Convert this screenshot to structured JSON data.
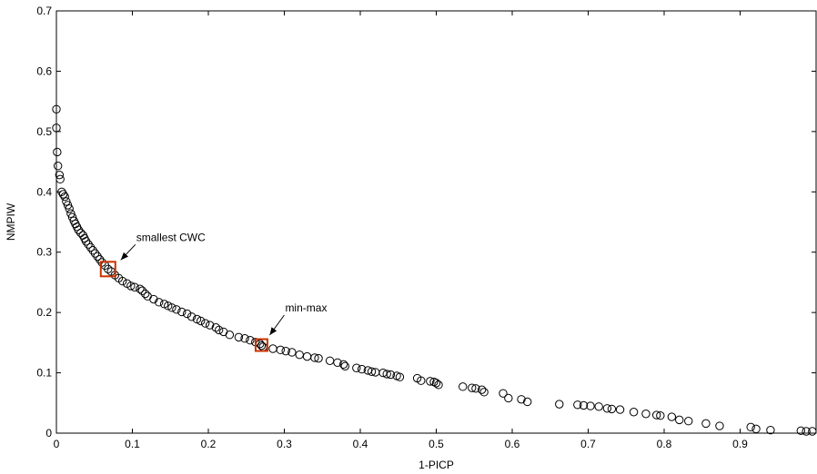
{
  "chart_data": {
    "type": "scatter",
    "title": "",
    "xlabel": "1-PICP",
    "ylabel": "NMPIW",
    "xlim": [
      0,
      1
    ],
    "ylim": [
      0,
      0.7
    ],
    "x_ticks": [
      0,
      0.1,
      0.2,
      0.3,
      0.4,
      0.5,
      0.6,
      0.7,
      0.8,
      0.9
    ],
    "x_tick_labels": [
      "0",
      "0.1",
      "0.2",
      "0.3",
      "0.4",
      "0.5",
      "0.6",
      "0.7",
      "0.8",
      "0.9"
    ],
    "y_ticks": [
      0,
      0.1,
      0.2,
      0.3,
      0.4,
      0.5,
      0.6,
      0.7
    ],
    "y_tick_labels": [
      "0",
      "0.1",
      "0.2",
      "0.3",
      "0.4",
      "0.5",
      "0.6",
      "0.7"
    ],
    "grid": false,
    "marker": "circle-open",
    "series": [
      {
        "points": [
          [
            0.0,
            0.537
          ],
          [
            0.0,
            0.506
          ],
          [
            0.001,
            0.466
          ],
          [
            0.002,
            0.443
          ],
          [
            0.004,
            0.428
          ],
          [
            0.005,
            0.421
          ],
          [
            0.007,
            0.4
          ],
          [
            0.009,
            0.396
          ],
          [
            0.011,
            0.392
          ],
          [
            0.013,
            0.384
          ],
          [
            0.015,
            0.378
          ],
          [
            0.017,
            0.372
          ],
          [
            0.019,
            0.364
          ],
          [
            0.021,
            0.358
          ],
          [
            0.023,
            0.352
          ],
          [
            0.025,
            0.347
          ],
          [
            0.027,
            0.342
          ],
          [
            0.029,
            0.337
          ],
          [
            0.032,
            0.332
          ],
          [
            0.035,
            0.328
          ],
          [
            0.037,
            0.323
          ],
          [
            0.039,
            0.318
          ],
          [
            0.042,
            0.313
          ],
          [
            0.045,
            0.308
          ],
          [
            0.048,
            0.303
          ],
          [
            0.051,
            0.298
          ],
          [
            0.054,
            0.293
          ],
          [
            0.057,
            0.288
          ],
          [
            0.06,
            0.283
          ],
          [
            0.064,
            0.278
          ],
          [
            0.068,
            0.272
          ],
          [
            0.072,
            0.268
          ],
          [
            0.077,
            0.262
          ],
          [
            0.082,
            0.257
          ],
          [
            0.087,
            0.252
          ],
          [
            0.093,
            0.248
          ],
          [
            0.098,
            0.244
          ],
          [
            0.103,
            0.242
          ],
          [
            0.11,
            0.239
          ],
          [
            0.113,
            0.236
          ],
          [
            0.117,
            0.231
          ],
          [
            0.12,
            0.227
          ],
          [
            0.128,
            0.222
          ],
          [
            0.135,
            0.217
          ],
          [
            0.142,
            0.214
          ],
          [
            0.147,
            0.211
          ],
          [
            0.152,
            0.208
          ],
          [
            0.158,
            0.205
          ],
          [
            0.165,
            0.201
          ],
          [
            0.172,
            0.198
          ],
          [
            0.178,
            0.193
          ],
          [
            0.185,
            0.189
          ],
          [
            0.19,
            0.186
          ],
          [
            0.196,
            0.182
          ],
          [
            0.202,
            0.179
          ],
          [
            0.21,
            0.175
          ],
          [
            0.214,
            0.171
          ],
          [
            0.22,
            0.168
          ],
          [
            0.228,
            0.163
          ],
          [
            0.24,
            0.159
          ],
          [
            0.248,
            0.157
          ],
          [
            0.255,
            0.154
          ],
          [
            0.262,
            0.151
          ],
          [
            0.268,
            0.148
          ],
          [
            0.27,
            0.145
          ],
          [
            0.272,
            0.143
          ],
          [
            0.285,
            0.14
          ],
          [
            0.295,
            0.138
          ],
          [
            0.302,
            0.136
          ],
          [
            0.31,
            0.134
          ],
          [
            0.32,
            0.13
          ],
          [
            0.33,
            0.127
          ],
          [
            0.34,
            0.125
          ],
          [
            0.345,
            0.124
          ],
          [
            0.36,
            0.12
          ],
          [
            0.37,
            0.117
          ],
          [
            0.378,
            0.114
          ],
          [
            0.38,
            0.111
          ],
          [
            0.395,
            0.108
          ],
          [
            0.402,
            0.106
          ],
          [
            0.41,
            0.104
          ],
          [
            0.415,
            0.102
          ],
          [
            0.42,
            0.101
          ],
          [
            0.43,
            0.1
          ],
          [
            0.435,
            0.098
          ],
          [
            0.44,
            0.097
          ],
          [
            0.448,
            0.095
          ],
          [
            0.452,
            0.093
          ],
          [
            0.475,
            0.091
          ],
          [
            0.48,
            0.087
          ],
          [
            0.492,
            0.086
          ],
          [
            0.497,
            0.085
          ],
          [
            0.5,
            0.083
          ],
          [
            0.503,
            0.08
          ],
          [
            0.535,
            0.077
          ],
          [
            0.547,
            0.075
          ],
          [
            0.552,
            0.074
          ],
          [
            0.56,
            0.072
          ],
          [
            0.563,
            0.068
          ],
          [
            0.588,
            0.066
          ],
          [
            0.595,
            0.058
          ],
          [
            0.612,
            0.056
          ],
          [
            0.62,
            0.052
          ],
          [
            0.662,
            0.048
          ],
          [
            0.686,
            0.047
          ],
          [
            0.694,
            0.046
          ],
          [
            0.703,
            0.045
          ],
          [
            0.714,
            0.044
          ],
          [
            0.725,
            0.041
          ],
          [
            0.731,
            0.04
          ],
          [
            0.742,
            0.039
          ],
          [
            0.76,
            0.035
          ],
          [
            0.776,
            0.032
          ],
          [
            0.79,
            0.03
          ],
          [
            0.795,
            0.029
          ],
          [
            0.81,
            0.027
          ],
          [
            0.82,
            0.022
          ],
          [
            0.832,
            0.02
          ],
          [
            0.855,
            0.016
          ],
          [
            0.873,
            0.012
          ],
          [
            0.914,
            0.01
          ],
          [
            0.921,
            0.007
          ],
          [
            0.94,
            0.005
          ],
          [
            0.98,
            0.004
          ],
          [
            0.987,
            0.003
          ],
          [
            0.995,
            0.003
          ]
        ]
      }
    ],
    "highlights": [
      {
        "label": "smallest CWC",
        "x": 0.068,
        "y": 0.272,
        "color": "#cc3300"
      },
      {
        "label": "min-max",
        "x": 0.27,
        "y": 0.146,
        "color": "#cc3300"
      }
    ]
  }
}
